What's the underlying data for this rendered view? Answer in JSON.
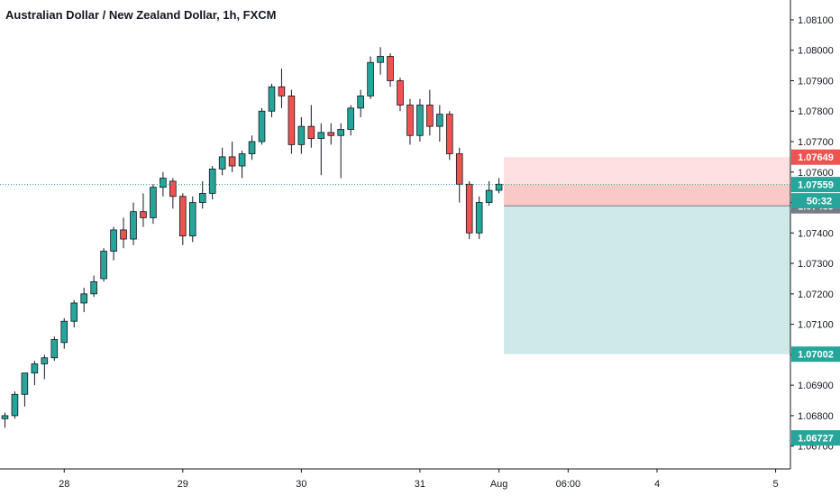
{
  "header": {
    "title": "Australian Dollar / New Zealand Dollar, 1h, FXCM"
  },
  "colors": {
    "up": "#26a69a",
    "down": "#ef5350",
    "outline": "#131722",
    "stop_zone": "#f9c9c7",
    "stop_zone_light": "#fde0df",
    "target_zone": "#cdeae9",
    "price_line": "#26a69a",
    "countdown_bg": "#26a69a",
    "entry_tag_bg": "#787b86"
  },
  "chart_data": {
    "type": "candlestick",
    "title": "Australian Dollar / New Zealand Dollar, 1h, FXCM",
    "ylim": [
      1.06625,
      1.08165
    ],
    "xlim": [
      -0.5,
      79.5
    ],
    "y_ticks": [
      "1.08100",
      "1.08000",
      "1.07900",
      "1.07800",
      "1.07700",
      "1.07600",
      "1.07500",
      "1.07400",
      "1.07300",
      "1.07200",
      "1.07100",
      "1.07000",
      "1.06900",
      "1.06800",
      "1.06700"
    ],
    "x_ticks": [
      {
        "label": "28",
        "x": 6
      },
      {
        "label": "29",
        "x": 18
      },
      {
        "label": "30",
        "x": 30
      },
      {
        "label": "31",
        "x": 42
      },
      {
        "label": "Aug",
        "x": 50
      },
      {
        "label": "06:00",
        "x": 57
      },
      {
        "label": "4",
        "x": 66
      },
      {
        "label": "5",
        "x": 78
      }
    ],
    "ohlc": [
      [
        1.0679,
        1.0681,
        1.0676,
        1.068
      ],
      [
        1.068,
        1.0688,
        1.0679,
        1.0687
      ],
      [
        1.0687,
        1.0694,
        1.0683,
        1.0694
      ],
      [
        1.0694,
        1.0698,
        1.069,
        1.0697
      ],
      [
        1.0697,
        1.07,
        1.0692,
        1.0699
      ],
      [
        1.0699,
        1.0706,
        1.0698,
        1.0705
      ],
      [
        1.0704,
        1.0712,
        1.0702,
        1.0711
      ],
      [
        1.0711,
        1.0718,
        1.0709,
        1.0717
      ],
      [
        1.0717,
        1.0722,
        1.0714,
        1.072
      ],
      [
        1.072,
        1.0726,
        1.0719,
        1.0724
      ],
      [
        1.0725,
        1.0735,
        1.0724,
        1.0734
      ],
      [
        1.0734,
        1.0742,
        1.0731,
        1.0741
      ],
      [
        1.0741,
        1.0745,
        1.0735,
        1.0738
      ],
      [
        1.0738,
        1.075,
        1.0736,
        1.0747
      ],
      [
        1.0747,
        1.0753,
        1.0742,
        1.0745
      ],
      [
        1.0745,
        1.0756,
        1.0743,
        1.0755
      ],
      [
        1.0755,
        1.076,
        1.0752,
        1.0758
      ],
      [
        1.0757,
        1.0758,
        1.0748,
        1.0752
      ],
      [
        1.0752,
        1.0753,
        1.0736,
        1.0739
      ],
      [
        1.0739,
        1.0752,
        1.0737,
        1.075
      ],
      [
        1.075,
        1.0757,
        1.0748,
        1.0753
      ],
      [
        1.0753,
        1.0762,
        1.0751,
        1.0761
      ],
      [
        1.0761,
        1.0768,
        1.0759,
        1.0765
      ],
      [
        1.0765,
        1.077,
        1.076,
        1.0762
      ],
      [
        1.0762,
        1.0767,
        1.0758,
        1.0766
      ],
      [
        1.0766,
        1.0772,
        1.0764,
        1.077
      ],
      [
        1.077,
        1.0781,
        1.0769,
        1.078
      ],
      [
        1.078,
        1.0789,
        1.0778,
        1.0788
      ],
      [
        1.0788,
        1.0794,
        1.0781,
        1.0785
      ],
      [
        1.0785,
        1.0787,
        1.0766,
        1.0769
      ],
      [
        1.0769,
        1.0778,
        1.0766,
        1.0775
      ],
      [
        1.0775,
        1.0782,
        1.0768,
        1.0771
      ],
      [
        1.0771,
        1.0776,
        1.0759,
        1.0773
      ],
      [
        1.0773,
        1.0776,
        1.0769,
        1.0772
      ],
      [
        1.0772,
        1.0776,
        1.0758,
        1.0774
      ],
      [
        1.0774,
        1.0782,
        1.0772,
        1.0781
      ],
      [
        1.0781,
        1.0787,
        1.0778,
        1.0785
      ],
      [
        1.0785,
        1.0798,
        1.0784,
        1.0796
      ],
      [
        1.0796,
        1.0801,
        1.0792,
        1.0798
      ],
      [
        1.0798,
        1.0799,
        1.0788,
        1.079
      ],
      [
        1.079,
        1.0791,
        1.078,
        1.0782
      ],
      [
        1.0782,
        1.0784,
        1.0769,
        1.0772
      ],
      [
        1.0772,
        1.0784,
        1.077,
        1.0782
      ],
      [
        1.0782,
        1.0787,
        1.0772,
        1.0775
      ],
      [
        1.0775,
        1.0782,
        1.077,
        1.0779
      ],
      [
        1.0779,
        1.078,
        1.0764,
        1.0766
      ],
      [
        1.0766,
        1.0768,
        1.075,
        1.0756
      ],
      [
        1.0756,
        1.0757,
        1.0738,
        1.074
      ],
      [
        1.074,
        1.0752,
        1.0738,
        1.075
      ],
      [
        1.075,
        1.0757,
        1.0749,
        1.0754
      ],
      [
        1.0754,
        1.0758,
        1.0753,
        1.0756
      ]
    ],
    "current_price": 1.07559,
    "countdown": "50:32",
    "position_tool": {
      "start_x": 50.5,
      "end_x": 79.5,
      "stop": 1.07649,
      "entry": 1.07489,
      "target": 1.07002
    },
    "price_tags": [
      {
        "label": "1.07649",
        "value": 1.07649,
        "color": "#ef5350"
      },
      {
        "label": "1.07559",
        "value": 1.07559,
        "color": "#26a69a"
      },
      {
        "label": "1.07489",
        "value": 1.07489,
        "color": "#787b86"
      },
      {
        "label": "1.07002",
        "value": 1.07002,
        "color": "#26a69a"
      },
      {
        "label": "1.06727",
        "value": 1.06727,
        "color": "#26a69a"
      }
    ]
  }
}
